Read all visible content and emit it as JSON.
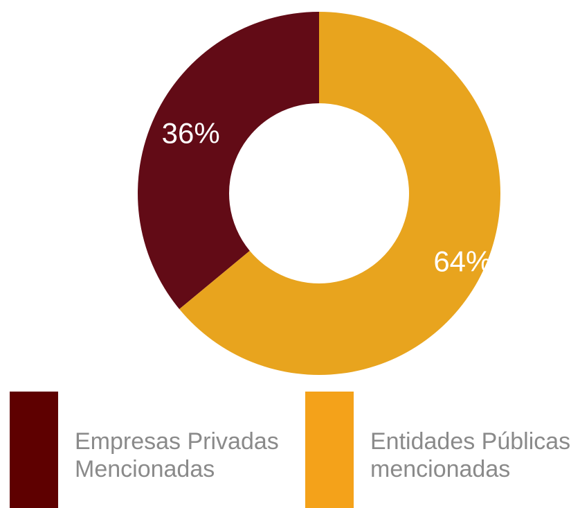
{
  "chart_data": {
    "type": "pie",
    "variant": "donut",
    "categories": [
      "Empresas Privadas Mencionadas",
      "Entidades Públicas mencionadas"
    ],
    "values": [
      36,
      64
    ],
    "labels": [
      "36%",
      "64%"
    ],
    "colors": [
      "#620b16",
      "#e8a41e"
    ],
    "legend_colors": [
      "#5e0000",
      "#f4a21a"
    ],
    "legend_position": "bottom",
    "title": ""
  },
  "legend": {
    "items": [
      {
        "label": "Empresas Privadas\nMencionadas",
        "color": "#5e0000"
      },
      {
        "label": "Entidades Públicas\nmencionadas",
        "color": "#f4a21a"
      }
    ]
  }
}
